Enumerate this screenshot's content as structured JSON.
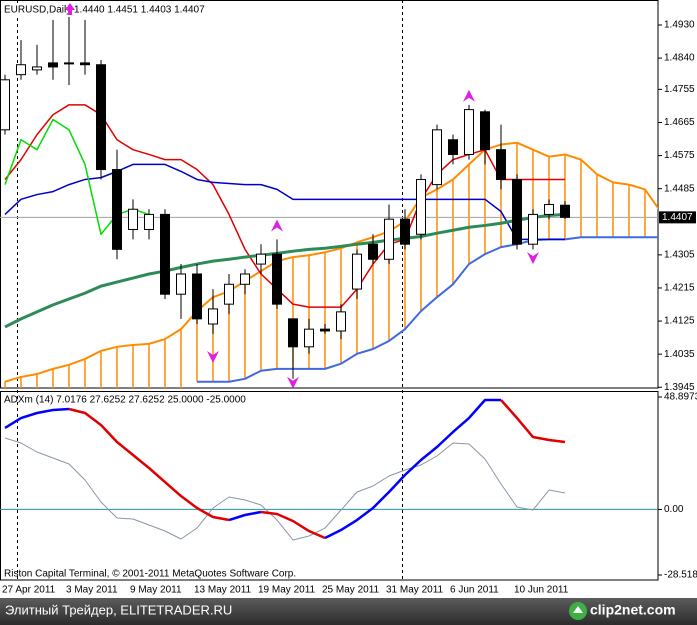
{
  "chart_data": [
    {
      "type": "candlestick",
      "title": "EURUSD,Daily",
      "subtitle": "1.4440 1.4451 1.4403 1.4407",
      "categories": [
        "27 Apr 2011",
        null,
        null,
        null,
        "3 May 2011",
        null,
        null,
        null,
        "9 May 2011",
        null,
        null,
        null,
        "13 May 2011",
        null,
        null,
        null,
        "19 May 2011",
        null,
        null,
        null,
        "25 May 2011",
        null,
        null,
        null,
        "31 May 2011",
        null,
        null,
        null,
        "6 Jun 2011",
        null,
        null,
        null,
        "10 Jun 2011",
        null,
        null,
        null,
        null,
        null,
        null,
        null,
        null,
        null
      ],
      "open": [
        1.4645,
        1.4795,
        1.4808,
        1.4827,
        1.4827,
        1.4827,
        1.4822,
        1.4537,
        1.4374,
        1.4374,
        1.4415,
        1.4198,
        1.4253,
        1.4117,
        1.4171,
        1.4225,
        1.428,
        1.4307,
        1.4131,
        1.4055,
        1.4103,
        1.4098,
        1.4212,
        1.4334,
        1.4293,
        1.4402,
        1.4361,
        1.4496,
        1.4618,
        1.4578,
        1.4694,
        1.4591,
        1.451,
        1.4334,
        1.4415,
        1.444,
        null,
        null,
        null,
        null,
        null,
        null
      ],
      "high": [
        1.4795,
        1.4889,
        1.4876,
        1.4944,
        1.4957,
        1.4944,
        1.4835,
        1.4591,
        1.4456,
        1.4429,
        1.4429,
        1.428,
        1.428,
        1.4212,
        1.4253,
        1.4266,
        1.4334,
        1.4347,
        1.4131,
        1.4131,
        1.4117,
        1.4171,
        1.432,
        1.4361,
        1.4442,
        1.4429,
        1.4524,
        1.4659,
        1.4632,
        1.4713,
        1.47,
        1.4659,
        1.4524,
        1.4429,
        1.4456,
        1.4451,
        null,
        null,
        null,
        null,
        null,
        null
      ],
      "low": [
        1.4632,
        1.4781,
        1.4795,
        1.4781,
        1.4767,
        1.4795,
        1.451,
        1.4293,
        1.4347,
        1.4347,
        1.4185,
        1.4131,
        1.4117,
        1.409,
        1.4144,
        1.4198,
        1.4253,
        1.4158,
        1.3968,
        1.4036,
        1.409,
        1.4076,
        1.4185,
        1.428,
        1.428,
        1.432,
        1.4347,
        1.4483,
        1.4551,
        1.4564,
        1.4551,
        1.4483,
        1.432,
        1.432,
        1.4402,
        1.4403,
        null,
        null,
        null,
        null,
        null,
        null
      ],
      "close": [
        1.4781,
        1.4822,
        1.4816,
        1.4816,
        1.4827,
        1.4822,
        1.4537,
        1.432,
        1.4429,
        1.4415,
        1.4198,
        1.4253,
        1.4131,
        1.4158,
        1.4225,
        1.4253,
        1.4307,
        1.4171,
        1.4055,
        1.4103,
        1.4098,
        1.415,
        1.4307,
        1.4293,
        1.4402,
        1.4334,
        1.451,
        1.4645,
        1.4578,
        1.47,
        1.4591,
        1.451,
        1.4334,
        1.4415,
        1.4442,
        1.4407,
        null,
        null,
        null,
        null,
        null,
        null
      ],
      "up_color": "#ffffff",
      "down_color": "#000000",
      "outline_color": "#000000",
      "lines": [
        {
          "color": "#e00000",
          "values": [
            1.451,
            1.4564,
            1.4632,
            1.4686,
            1.4713,
            1.4713,
            1.4686,
            1.4618,
            1.4591,
            1.4578,
            1.4564,
            1.4564,
            1.4537,
            1.4496,
            1.4415,
            1.432,
            1.4253,
            1.4212,
            1.4171,
            1.4163,
            1.4163,
            1.4163,
            1.4212,
            1.428,
            1.4334,
            1.4347,
            1.4456,
            1.4524,
            1.4564,
            1.4578,
            1.4591,
            1.451,
            1.451,
            1.451,
            1.451,
            1.451,
            null,
            null,
            null,
            null,
            null,
            null
          ]
        },
        {
          "color": "#0000cc",
          "values": [
            1.4415,
            1.4456,
            1.4469,
            1.4477,
            1.4496,
            1.451,
            1.4515,
            1.4532,
            1.4551,
            1.4551,
            1.4551,
            1.4532,
            1.451,
            1.4502,
            1.4499,
            1.4496,
            1.4496,
            1.4483,
            1.4456,
            1.4456,
            1.4456,
            1.4456,
            1.4456,
            1.4456,
            1.4456,
            1.4456,
            1.4456,
            1.4456,
            1.4456,
            1.4456,
            1.4456,
            1.4423,
            1.4347,
            1.4347,
            1.4347,
            1.4347,
            null,
            null,
            null,
            null,
            null,
            null
          ]
        },
        {
          "color": "#00dd00",
          "values": [
            1.4496,
            1.4618,
            1.4591,
            1.4673,
            1.4645,
            1.4551,
            1.4361,
            1.4415,
            1.4429,
            1.4415,
            null,
            null,
            null,
            null,
            null,
            null,
            null,
            null,
            null,
            null,
            null,
            null,
            null,
            null,
            null,
            null,
            null,
            null,
            null,
            null,
            null,
            null,
            null,
            null,
            null,
            null,
            null,
            null,
            null,
            null,
            null,
            null
          ]
        },
        {
          "color": "#2e8b57",
          "values": [
            1.4109,
            1.4131,
            1.415,
            1.4169,
            1.4185,
            1.4201,
            1.422,
            1.4231,
            1.4242,
            1.4253,
            1.4261,
            1.4271,
            1.428,
            1.4288,
            1.4293,
            1.4299,
            1.4304,
            1.4309,
            1.4315,
            1.432,
            1.4323,
            1.4328,
            1.4334,
            1.4339,
            1.4345,
            1.435,
            1.4355,
            1.4364,
            1.4372,
            1.438,
            1.4385,
            1.4391,
            1.4399,
            1.4407,
            1.4412,
            1.4415,
            null,
            null,
            null,
            null,
            null,
            null
          ]
        }
      ],
      "span_a": {
        "color": "#ff8c00",
        "values": [
          1.396,
          1.3973,
          1.3981,
          1.3995,
          1.4006,
          1.4022,
          1.4044,
          1.4055,
          1.406,
          1.4063,
          1.4076,
          1.4103,
          1.4152,
          1.419,
          1.4206,
          1.4234,
          1.4261,
          1.4288,
          1.4299,
          1.4304,
          1.4312,
          1.4323,
          1.4339,
          1.4353,
          1.4369,
          1.4396,
          1.4461,
          1.4483,
          1.451,
          1.4551,
          1.4591,
          1.4605,
          1.461,
          1.4591,
          1.4572,
          1.4578,
          1.4564,
          1.4524,
          1.4502,
          1.4496,
          1.4483,
          1.4421
        ]
      },
      "span_b": {
        "color": "#4169e1",
        "values": [
          null,
          null,
          null,
          null,
          null,
          null,
          null,
          null,
          null,
          null,
          null,
          null,
          1.396,
          1.396,
          1.396,
          1.3968,
          1.399,
          1.3995,
          1.3995,
          1.3995,
          1.3995,
          1.4009,
          1.4036,
          1.4049,
          1.4071,
          1.4103,
          1.4152,
          1.419,
          1.4225,
          1.428,
          1.4307,
          1.4326,
          1.4334,
          1.4345,
          1.4347,
          1.4347,
          1.4353,
          1.4353,
          1.4353,
          1.4353,
          1.4353,
          1.4353
        ]
      },
      "cloud_color": "#ff8c00",
      "fractals_up": [
        null,
        null,
        null,
        null,
        null,
        null,
        null,
        null,
        null,
        null,
        null,
        null,
        null,
        null,
        null,
        null,
        null,
        1.4382,
        null,
        null,
        null,
        null,
        null,
        null,
        null,
        null,
        null,
        null,
        null,
        1.4735,
        null,
        null,
        null,
        null,
        null,
        null,
        null,
        null,
        null,
        null,
        null,
        null
      ],
      "fractals_down": [
        null,
        null,
        null,
        null,
        null,
        null,
        null,
        null,
        null,
        null,
        null,
        null,
        null,
        1.403,
        null,
        null,
        null,
        null,
        1.396,
        null,
        null,
        null,
        null,
        null,
        null,
        null,
        null,
        null,
        null,
        null,
        null,
        null,
        null,
        1.4299,
        null,
        null,
        null,
        null,
        null,
        null,
        null,
        null
      ],
      "fractal_color": "#e020e0",
      "price_label": {
        "value": 1.4407,
        "label": "1.4407"
      },
      "ylim": [
        1.3943,
        1.4998
      ],
      "yticks": [
        {
          "value": 1.493,
          "label": "1.4930"
        },
        {
          "value": 1.484,
          "label": "1.4840"
        },
        1.4755,
        1.4665,
        1.4575,
        1.4485,
        1.4305,
        1.4215,
        1.4125,
        1.4035,
        1.3945
      ],
      "grid": false
    },
    {
      "type": "line",
      "title": "ADXm (14) 7.0176 27.6252 27.6252 25.0000 -25.0000",
      "annotation": "Riston Capital Terminal, © 2001-2011 MetaQuotes Software Corp.",
      "series": [
        {
          "color": "#8a96a8",
          "values": [
            31.07,
            28.89,
            24.98,
            22.37,
            19.76,
            12.8,
            3.23,
            -3.73,
            -4.16,
            -6.77,
            -9.38,
            -12.86,
            -8.08,
            0.62,
            5.41,
            4.1,
            1.93,
            -4.6,
            -13.29,
            -11.55,
            -8.08,
            -0.25,
            7.58,
            10.19,
            14.54,
            17.15,
            19.33,
            23.24,
            28.89,
            28.46,
            21.93,
            11.06,
            1.06,
            -0.25,
            8.45,
            7.15
          ]
        },
        {
          "up_color": "#0000ff",
          "down_color": "#e00000",
          "values": [
            35.42,
            39.76,
            41.94,
            43.24,
            43.68,
            41.94,
            36.72,
            29.33,
            23.67,
            18.02,
            11.93,
            5.84,
            0.62,
            -3.29,
            -4.6,
            -2.42,
            -1.12,
            -1.99,
            -5.03,
            -9.38,
            -12.42,
            -8.95,
            -4.6,
            0.62,
            7.58,
            14.97,
            21.5,
            27.15,
            33.68,
            39.76,
            47.59,
            47.59,
            39.76,
            31.5,
            30.2,
            29.33
          ]
        }
      ],
      "levels": [
        0
      ],
      "level_color": "#2090a8",
      "ylim": [
        -30.69,
        51.51
      ],
      "yticks": [
        48.8973,
        {
          "value": 0,
          "label": "0.00"
        },
        -28.5187
      ],
      "grid": false
    }
  ],
  "footer": {
    "text": "Элитный Трейдер, ELITETRADER.RU",
    "logo": "clip2net.com"
  }
}
